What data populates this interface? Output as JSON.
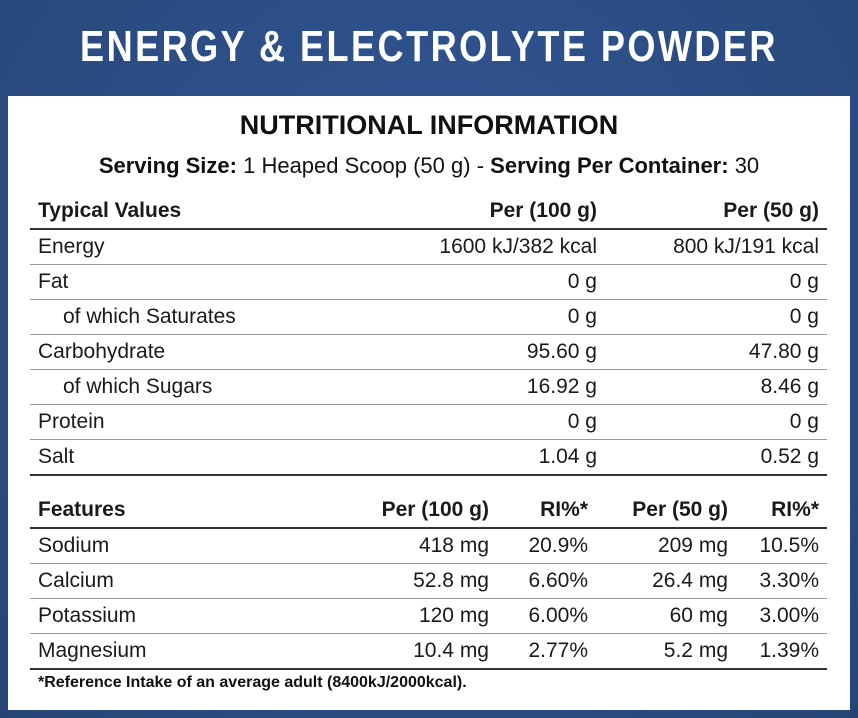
{
  "header": {
    "title": "ENERGY & ELECTROLYTE POWDER"
  },
  "subtitle": "NUTRITIONAL INFORMATION",
  "serving": {
    "size_label": "Serving Size:",
    "size_value": "1 Heaped Scoop (50 g)",
    "separator": "-",
    "container_label": "Serving Per Container:",
    "container_value": "30"
  },
  "table": {
    "header": [
      "Typical Values",
      "Per (100 g)",
      "Per (50 g)"
    ],
    "rows": [
      [
        "Energy",
        "1600 kJ/382 kcal",
        "800 kJ/191 kcal"
      ],
      [
        "Fat",
        "0 g",
        "0 g"
      ],
      [
        "of which Saturates",
        "0 g",
        "0 g"
      ],
      [
        "Carbohydrate",
        "95.60 g",
        "47.80 g"
      ],
      [
        "of which Sugars",
        "16.92 g",
        "8.46 g"
      ],
      [
        "Protein",
        "0 g",
        "0 g"
      ],
      [
        "Salt",
        "1.04 g",
        "0.52 g"
      ]
    ]
  },
  "features": {
    "header": [
      "Features",
      "Per (100 g)",
      "RI%*",
      "Per (50 g)",
      "RI%*"
    ],
    "rows": [
      [
        "Sodium",
        "418 mg",
        "20.9%",
        "209 mg",
        "10.5%"
      ],
      [
        "Calcium",
        "52.8 mg",
        "6.60%",
        "26.4 mg",
        "3.30%"
      ],
      [
        "Potassium",
        "120 mg",
        "6.00%",
        "60 mg",
        "3.00%"
      ],
      [
        "Magnesium",
        "10.4 mg",
        "2.77%",
        "5.2 mg",
        "1.39%"
      ]
    ]
  },
  "footnote": "*Reference Intake of an average adult (8400kJ/2000kcal)."
}
